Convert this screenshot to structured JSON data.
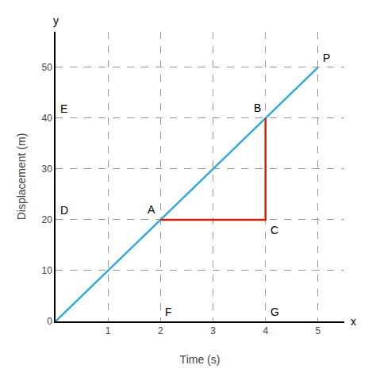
{
  "chart_data": {
    "type": "line",
    "xlabel": "Time (s)",
    "ylabel": "Displacement (m)",
    "series": [
      {
        "color": "#33AADD",
        "x": [
          0,
          5
        ],
        "values": [
          0,
          50
        ]
      },
      {
        "color": "#CC2200",
        "x": [
          2,
          4,
          4
        ],
        "values": [
          20,
          20,
          40
        ]
      }
    ],
    "xlim": [
      0,
      5.5
    ],
    "ylim": [
      0,
      57
    ],
    "xticks": [
      1,
      2,
      3,
      4,
      5
    ],
    "yticks": [
      0,
      10,
      20,
      30,
      40,
      50
    ],
    "grid": true,
    "annotations": [
      {
        "text": "A",
        "x": 2,
        "y": 20
      },
      {
        "text": "B",
        "x": 4,
        "y": 40
      },
      {
        "text": "C",
        "x": 4,
        "y": 20
      },
      {
        "text": "D",
        "x": 0,
        "y": 20
      },
      {
        "text": "E",
        "x": 0,
        "y": 40
      },
      {
        "text": "F",
        "x": 2,
        "y": 0
      },
      {
        "text": "G",
        "x": 4,
        "y": 0
      },
      {
        "text": "P",
        "x": 5,
        "y": 50
      },
      {
        "text": "x",
        "x": 5.5,
        "y": 0
      },
      {
        "text": "y",
        "x": 0,
        "y": 57
      }
    ]
  }
}
